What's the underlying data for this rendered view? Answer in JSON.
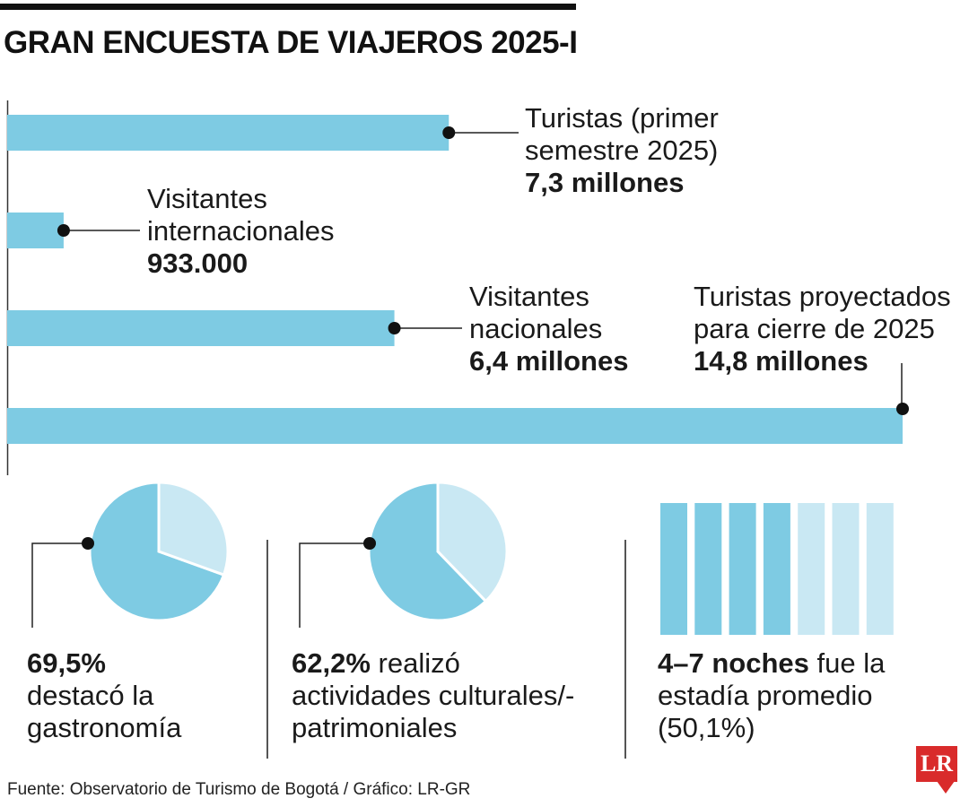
{
  "title": "GRAN ENCUESTA DE VIAJEROS 2025-I",
  "colors": {
    "primary": "#7ecbe3",
    "light": "#c9e8f3",
    "ink": "#111111",
    "logo": "#d92b2b"
  },
  "chart_data": [
    {
      "type": "bar",
      "orientation": "horizontal",
      "categories": [
        "Turistas (primer semestre 2025)",
        "Visitantes internacionales",
        "Visitantes nacionales",
        "Turistas proyectados para cierre de 2025"
      ],
      "values": [
        7300000,
        933000,
        6400000,
        14800000
      ],
      "value_labels": [
        "7,3 millones",
        "933.000",
        "6,4 millones",
        "14,8 millones"
      ],
      "label_lines": [
        [
          "Turistas (primer",
          "semestre 2025)"
        ],
        [
          "Visitantes",
          "internacionales"
        ],
        [
          "Visitantes",
          "nacionales"
        ],
        [
          "Turistas proyectados",
          "para cierre de 2025"
        ]
      ],
      "xlim": [
        0,
        14800000
      ]
    },
    {
      "type": "pie",
      "values": [
        69.5,
        30.5
      ],
      "highlight": 0,
      "value_label": "69,5%",
      "text_lines": [
        "destacó la",
        "gastronomía"
      ]
    },
    {
      "type": "pie",
      "values": [
        62.2,
        37.8
      ],
      "highlight": 0,
      "value_label": "62,2%",
      "text_lines": [
        "realizó",
        "actividades culturales/-",
        "patrimoniales"
      ]
    },
    {
      "type": "bar",
      "note": "pictogram of nights",
      "total_units": 7,
      "highlighted_units": 4,
      "value_label": "4–7 noches",
      "text_lines": [
        "fue la",
        "estadía promedio",
        "(50,1%)"
      ]
    }
  ],
  "source": "Fuente: Observatorio de Turismo de Bogotá / Gráfico: LR-GR",
  "logo": "LR"
}
